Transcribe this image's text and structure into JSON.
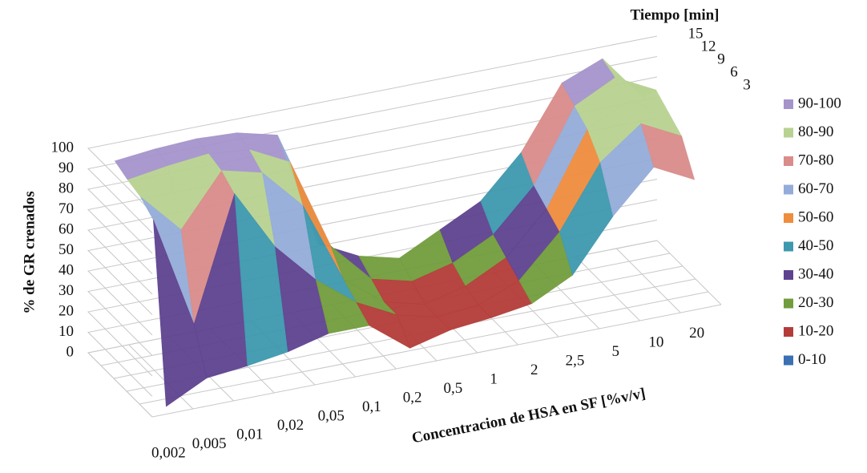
{
  "chart_data": {
    "type": "surface",
    "title_z": "% de GR crenados",
    "title_x": "Concentracion de HSA en SF [%v/v]",
    "title_depth": "Tiempo [min]",
    "categories": [
      "0,002",
      "0,005",
      "0,01",
      "0,02",
      "0,05",
      "0,1",
      "0,2",
      "0,5",
      "1",
      "2",
      "2,5",
      "5",
      "10",
      "20"
    ],
    "series": [
      {
        "name": "15",
        "values": [
          95,
          97,
          98,
          97,
          92,
          35,
          25,
          20,
          30,
          40,
          60,
          90,
          98,
          75
        ]
      },
      {
        "name": "12",
        "values": [
          92,
          95,
          97,
          95,
          85,
          40,
          20,
          15,
          20,
          30,
          50,
          85,
          95,
          85
        ]
      },
      {
        "name": "9",
        "values": [
          90,
          70,
          95,
          90,
          70,
          30,
          15,
          10,
          15,
          25,
          45,
          80,
          90,
          80
        ]
      },
      {
        "name": "6",
        "values": [
          85,
          30,
          90,
          60,
          40,
          25,
          15,
          10,
          12,
          20,
          40,
          70,
          85,
          75
        ]
      },
      {
        "name": "3",
        "values": [
          0,
          10,
          12,
          15,
          20,
          20,
          5,
          10,
          12,
          15,
          25,
          50,
          70,
          60
        ]
      }
    ],
    "zlim": [
      0,
      100
    ],
    "zticks": [
      0,
      10,
      20,
      30,
      40,
      50,
      60,
      70,
      80,
      90,
      100
    ],
    "grid": true,
    "legend_position": "right",
    "bands": [
      {
        "name": "90-100",
        "color": "#a594cc"
      },
      {
        "name": "80-90",
        "color": "#b8d291"
      },
      {
        "name": "70-80",
        "color": "#d98c8a"
      },
      {
        "name": "60-70",
        "color": "#94acd9"
      },
      {
        "name": "50-60",
        "color": "#ef8d3e"
      },
      {
        "name": "40-50",
        "color": "#3e98ae"
      },
      {
        "name": "30-40",
        "color": "#5e4290"
      },
      {
        "name": "20-30",
        "color": "#729c3d"
      },
      {
        "name": "10-20",
        "color": "#b43c38"
      },
      {
        "name": "0-10",
        "color": "#3b70b3"
      }
    ]
  }
}
